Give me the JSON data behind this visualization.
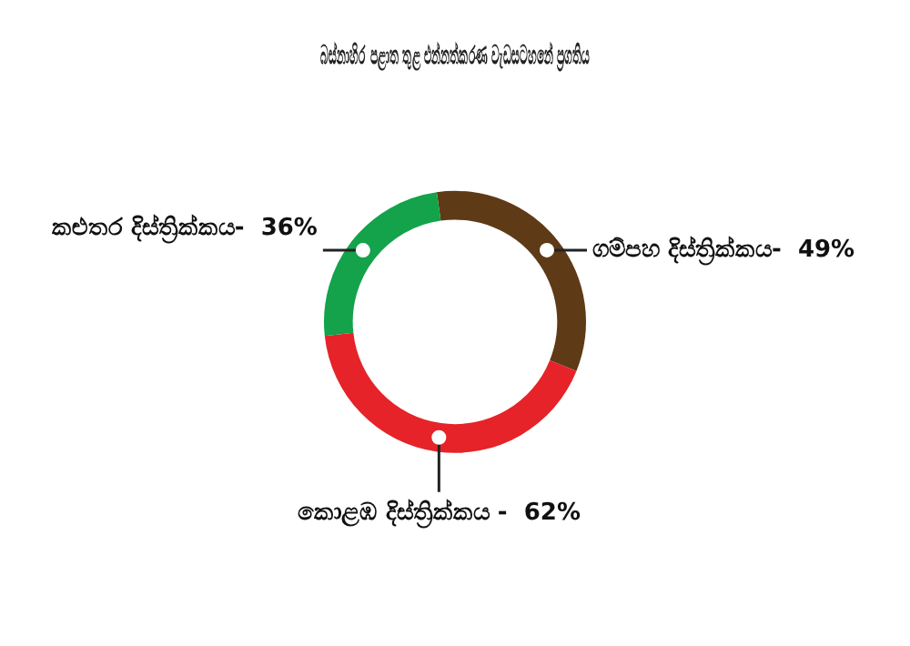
{
  "chart_data": {
    "type": "donut",
    "title": "බස්නාහිර පළාත තුළ එන්නත්කරණ වැඩසටහනේ ප්‍රගතිය",
    "categories": [
      "ගම්පහ දිස්ත්‍රික්කය-",
      "කොළඹ දිස්ත්‍රික්කය -",
      "කළුතර දිස්ත්‍රික්කය-"
    ],
    "values": [
      49,
      62,
      36
    ],
    "value_labels": [
      "49%",
      "62%",
      "36%"
    ],
    "colors": [
      "#5e3a16",
      "#e52329",
      "#14a24b"
    ],
    "legend": false
  }
}
